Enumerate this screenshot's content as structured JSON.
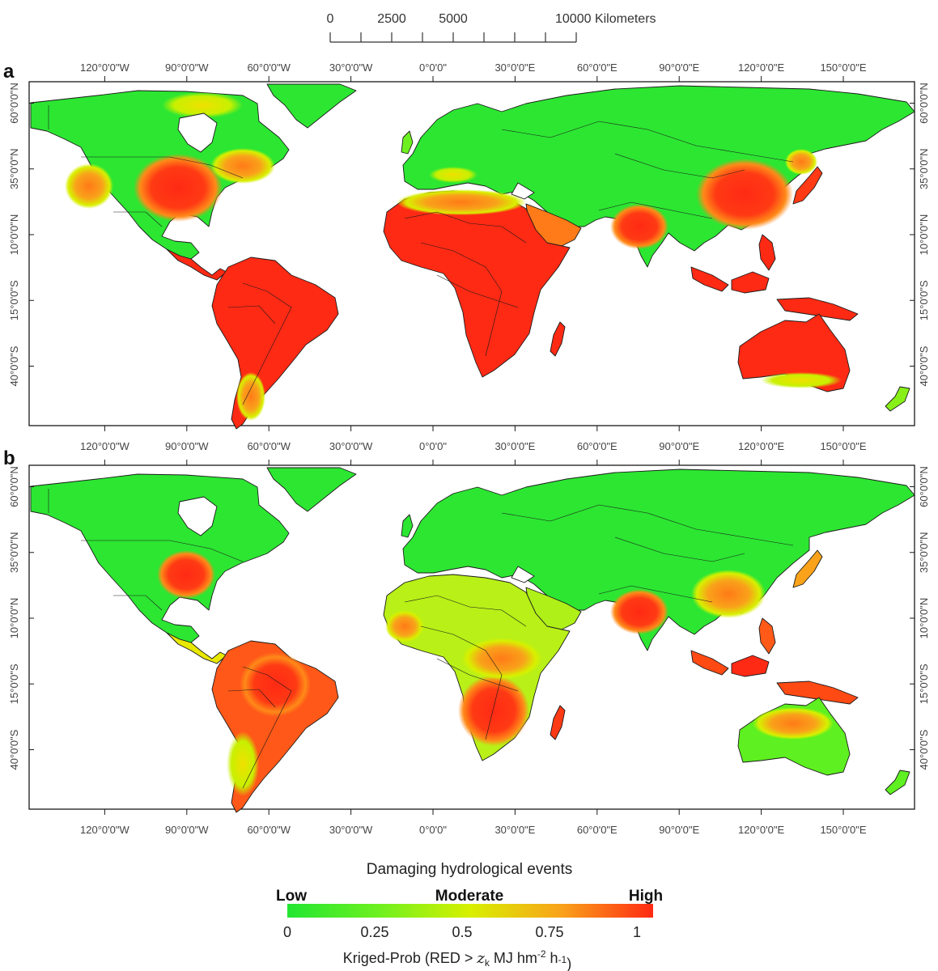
{
  "scale_bar": {
    "labels": [
      "0",
      "2500",
      "5000",
      "10000 Kilometers"
    ],
    "values_km": [
      0,
      2500,
      5000,
      10000
    ]
  },
  "longitude_labels": [
    "120°0'0\"W",
    "90°0'0\"W",
    "60°0'0\"W",
    "30°0'0\"W",
    "0°0'0\"",
    "30°0'0\"E",
    "60°0'0\"E",
    "90°0'0\"E",
    "120°0'0\"E",
    "150°0'0\"E"
  ],
  "longitudes": [
    -120,
    -90,
    -60,
    -30,
    0,
    30,
    60,
    90,
    120,
    150
  ],
  "latitude_labels": [
    "60°0'0\"N",
    "35°0'0\"N",
    "10°0'0\"N",
    "15°0'0\"S",
    "40°0'0\"S"
  ],
  "latitudes": [
    60,
    35,
    10,
    -15,
    -40
  ],
  "panels": [
    {
      "letter": "a"
    },
    {
      "letter": "b"
    }
  ],
  "legend": {
    "title": "Damaging hydrological events",
    "low": "Low",
    "moderate": "Moderate",
    "high": "High",
    "ticks": [
      "0",
      "0.25",
      "0.5",
      "0.75",
      "1"
    ],
    "tick_values": [
      0,
      0.25,
      0.5,
      0.75,
      1
    ],
    "axis_prefix": "Kriged-Prob (RED > ",
    "axis_var": "z",
    "axis_sub": "k",
    "axis_unit1": " MJ hm",
    "axis_exp1": "-2",
    "axis_unit2": " h",
    "axis_exp2": "-1",
    "axis_suffix": ")",
    "colors": [
      "#22e632",
      "#6ef020",
      "#d8f000",
      "#f9a21a",
      "#ff2a14"
    ]
  },
  "colors": {
    "low": "#22e632",
    "moderate": "#d8f000",
    "high": "#ff2a14",
    "ocean": "#ffffff",
    "outline": "#1a1a1a"
  }
}
